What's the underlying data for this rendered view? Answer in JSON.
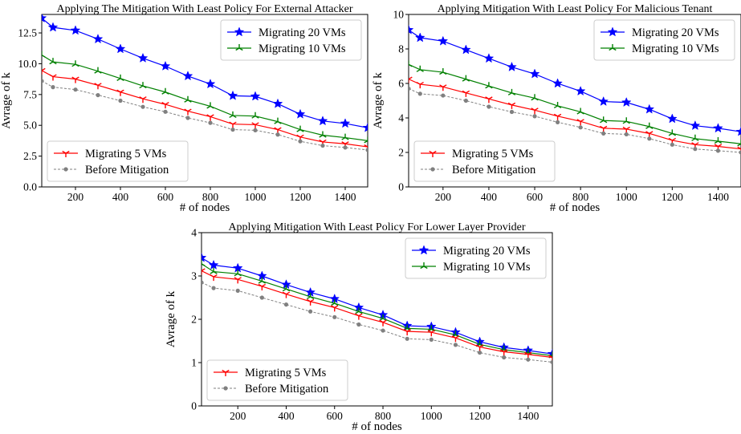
{
  "chart_data": [
    {
      "type": "line",
      "title": "Applying The Mitigation With Least Policy For External Attacker",
      "xlabel": "# of nodes",
      "ylabel": "Avrage of k",
      "xlim": [
        50,
        1500
      ],
      "ylim": [
        0,
        14
      ],
      "xticks": [
        "200",
        "400",
        "600",
        "800",
        "1000",
        "1200",
        "1400"
      ],
      "yticks": [
        "0.0",
        "2.5",
        "5.0",
        "7.5",
        "10.0",
        "12.5"
      ],
      "x": [
        50,
        100,
        200,
        300,
        400,
        500,
        600,
        700,
        800,
        900,
        1000,
        1100,
        1200,
        1300,
        1400,
        1500
      ],
      "series": [
        {
          "name": "Migrating 20 VMs",
          "color": "#0000ff",
          "marker": "star",
          "values": [
            13.7,
            12.95,
            12.7,
            12.0,
            11.2,
            10.45,
            9.8,
            9.0,
            8.35,
            7.4,
            7.35,
            6.75,
            5.9,
            5.35,
            5.15,
            4.8
          ]
        },
        {
          "name": "Migrating 10 VMs",
          "color": "#008000",
          "marker": "tri_up",
          "values": [
            10.7,
            10.15,
            9.95,
            9.4,
            8.8,
            8.2,
            7.7,
            7.05,
            6.55,
            5.8,
            5.75,
            5.3,
            4.65,
            4.2,
            4.0,
            3.75
          ]
        },
        {
          "name": "Migrating 5 VMs",
          "color": "#ff0000",
          "marker": "tri_down",
          "values": [
            9.45,
            8.95,
            8.75,
            8.25,
            7.7,
            7.15,
            6.7,
            6.15,
            5.7,
            5.1,
            5.05,
            4.65,
            4.05,
            3.65,
            3.5,
            3.25
          ]
        },
        {
          "name": "Before Mitigation",
          "color": "#808080",
          "marker": "dot",
          "dashed": true,
          "values": [
            8.6,
            8.1,
            7.9,
            7.45,
            7.0,
            6.5,
            6.1,
            5.6,
            5.2,
            4.65,
            4.6,
            4.25,
            3.7,
            3.35,
            3.2,
            3.0
          ]
        }
      ],
      "legends": [
        {
          "position": "upper-right",
          "series": [
            0,
            1
          ]
        },
        {
          "position": "lower-left",
          "series": [
            2,
            3
          ]
        }
      ]
    },
    {
      "type": "line",
      "title": "Applying Mitigation With Least Policy For Malicious Tenant",
      "xlabel": "# of nodes",
      "ylabel": "Avrage of k",
      "xlim": [
        50,
        1500
      ],
      "ylim": [
        0,
        10
      ],
      "xticks": [
        "200",
        "400",
        "600",
        "800",
        "1000",
        "1200",
        "1400"
      ],
      "yticks": [
        "0",
        "2",
        "4",
        "6",
        "8",
        "10"
      ],
      "x": [
        50,
        100,
        200,
        300,
        400,
        500,
        600,
        700,
        800,
        900,
        1000,
        1100,
        1200,
        1300,
        1400,
        1500
      ],
      "series": [
        {
          "name": "Migrating 20 VMs",
          "color": "#0000ff",
          "marker": "star",
          "values": [
            9.1,
            8.65,
            8.45,
            7.95,
            7.45,
            6.95,
            6.55,
            6.0,
            5.55,
            4.95,
            4.9,
            4.5,
            3.95,
            3.55,
            3.4,
            3.2
          ]
        },
        {
          "name": "Migrating 10 VMs",
          "color": "#008000",
          "marker": "tri_up",
          "values": [
            7.1,
            6.8,
            6.65,
            6.25,
            5.85,
            5.45,
            5.15,
            4.7,
            4.35,
            3.85,
            3.8,
            3.5,
            3.1,
            2.8,
            2.65,
            2.5
          ]
        },
        {
          "name": "Migrating 5 VMs",
          "color": "#ff0000",
          "marker": "tri_down",
          "values": [
            6.25,
            5.95,
            5.8,
            5.45,
            5.1,
            4.75,
            4.45,
            4.1,
            3.8,
            3.4,
            3.35,
            3.1,
            2.7,
            2.45,
            2.35,
            2.2
          ]
        },
        {
          "name": "Before Mitigation",
          "color": "#808080",
          "marker": "dot",
          "dashed": true,
          "values": [
            5.7,
            5.4,
            5.3,
            5.0,
            4.65,
            4.35,
            4.1,
            3.75,
            3.45,
            3.1,
            3.05,
            2.8,
            2.45,
            2.2,
            2.1,
            2.0
          ]
        }
      ],
      "legends": [
        {
          "position": "upper-right",
          "series": [
            0,
            1
          ]
        },
        {
          "position": "lower-left",
          "series": [
            2,
            3
          ]
        }
      ]
    },
    {
      "type": "line",
      "title": "Applying Mitigation With Least Policy For Lower Layer Provider",
      "xlabel": "# of nodes",
      "ylabel": "Avrage of k",
      "xlim": [
        50,
        1500
      ],
      "ylim": [
        0,
        4
      ],
      "xticks": [
        "200",
        "400",
        "600",
        "800",
        "1000",
        "1200",
        "1400"
      ],
      "yticks": [
        "0",
        "1",
        "2",
        "3",
        "4"
      ],
      "x": [
        50,
        100,
        200,
        300,
        400,
        500,
        600,
        700,
        800,
        900,
        1000,
        1100,
        1200,
        1300,
        1400,
        1500
      ],
      "series": [
        {
          "name": "Migrating 20 VMs",
          "color": "#0000ff",
          "marker": "star",
          "values": [
            3.42,
            3.25,
            3.18,
            3.0,
            2.8,
            2.62,
            2.47,
            2.27,
            2.1,
            1.85,
            1.83,
            1.7,
            1.48,
            1.35,
            1.28,
            1.2
          ]
        },
        {
          "name": "Migrating 10 VMs",
          "color": "#008000",
          "marker": "tri_up",
          "values": [
            3.28,
            3.1,
            3.05,
            2.88,
            2.7,
            2.52,
            2.37,
            2.18,
            2.02,
            1.79,
            1.77,
            1.64,
            1.42,
            1.3,
            1.23,
            1.16
          ]
        },
        {
          "name": "Migrating 5 VMs",
          "color": "#ff0000",
          "marker": "tri_down",
          "values": [
            3.12,
            2.98,
            2.92,
            2.76,
            2.58,
            2.41,
            2.27,
            2.08,
            1.93,
            1.72,
            1.7,
            1.57,
            1.36,
            1.25,
            1.19,
            1.12
          ]
        },
        {
          "name": "Before Mitigation",
          "color": "#808080",
          "marker": "dot",
          "dashed": true,
          "values": [
            2.85,
            2.72,
            2.66,
            2.5,
            2.34,
            2.18,
            2.05,
            1.88,
            1.74,
            1.55,
            1.53,
            1.41,
            1.23,
            1.12,
            1.07,
            1.01
          ]
        }
      ],
      "legends": [
        {
          "position": "upper-right",
          "series": [
            0,
            1
          ]
        },
        {
          "position": "lower-left",
          "series": [
            2,
            3
          ]
        }
      ]
    }
  ]
}
